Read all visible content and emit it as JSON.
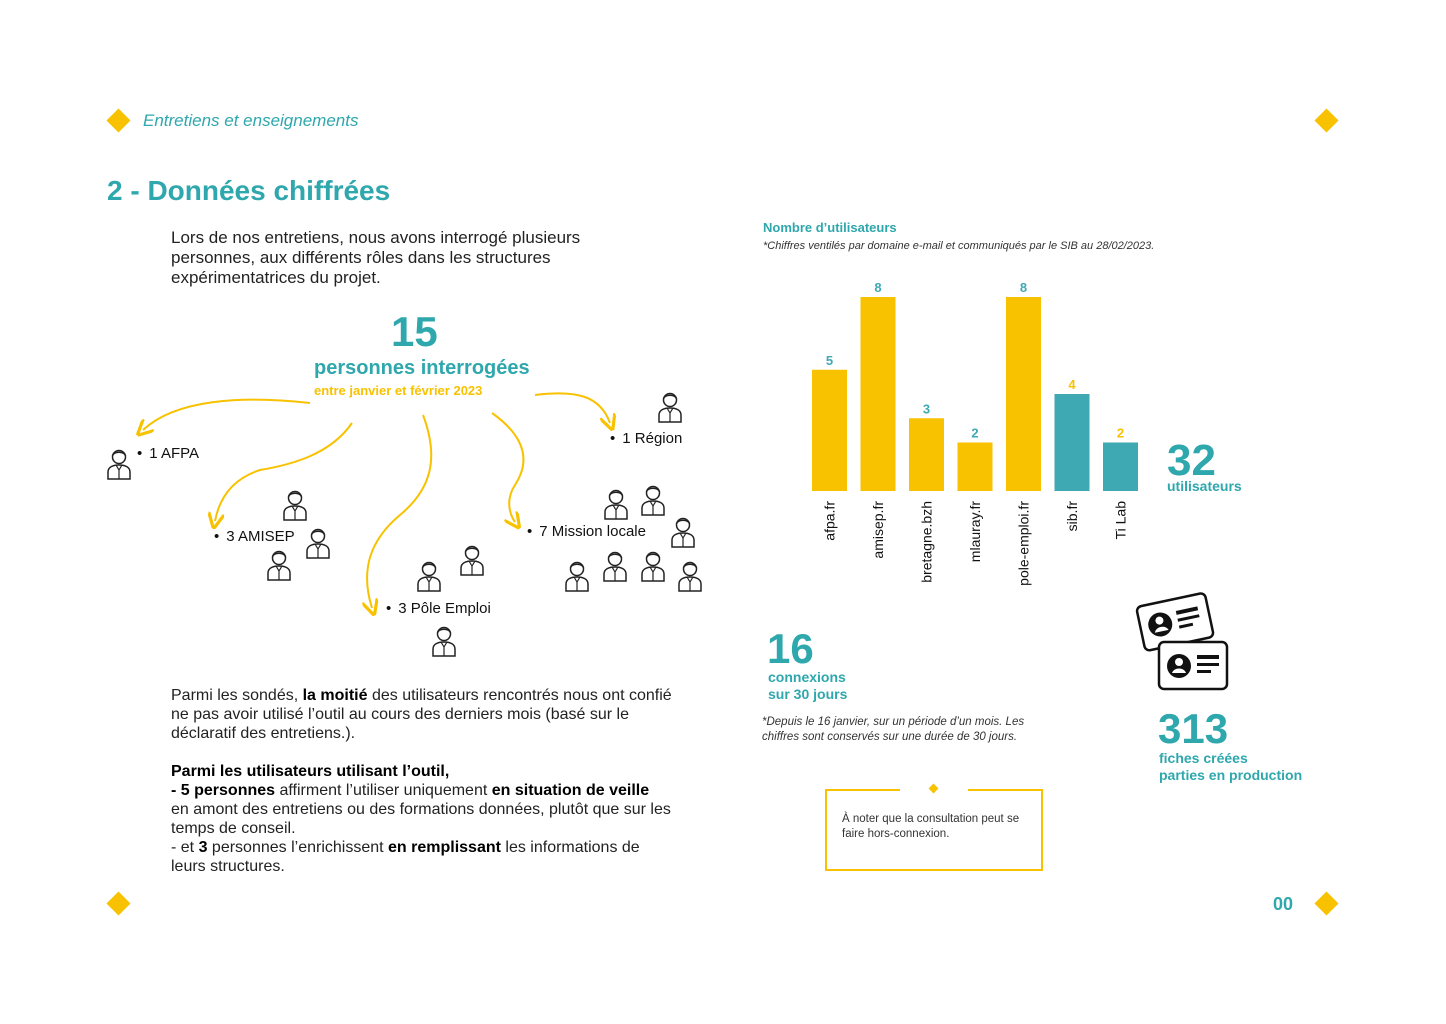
{
  "header": {
    "section": "Entretiens et enseignements"
  },
  "page": {
    "title": "2 - Données chiffrées",
    "intro": "Lors de nos entretiens, nous avons interrogé plusieurs personnes, aux différents rôles dans les structures expérimentatrices du projet.",
    "page_number": "00"
  },
  "interviews": {
    "total": "15",
    "label": "personnes interrogées",
    "period": "entre janvier et février 2023",
    "groups": [
      {
        "label": "1 AFPA",
        "count": 1
      },
      {
        "label": "1 Région",
        "count": 1
      },
      {
        "label": "3 AMISEP",
        "count": 3
      },
      {
        "label": "3 Pôle Emploi",
        "count": 3
      },
      {
        "label": "7 Mission locale",
        "count": 7
      }
    ]
  },
  "findings": {
    "p1_a": "Parmi les sondés, ",
    "p1_b": "la moitié",
    "p1_c": " des utilisateurs rencontrés nous ont confié ne pas avoir utilisé l’outil au cours des derniers mois (basé sur le déclaratif des entretiens.).",
    "p2_title": "Parmi les utilisateurs utilisant l’outil,",
    "p2_a": "- 5 personnes",
    "p2_b": " affirment l’utiliser uniquement ",
    "p2_c": "en situation de veille",
    "p2_d": " en amont des entretiens ou des formations données, plutôt que sur les temps de conseil.",
    "p3_a": "- et ",
    "p3_b": "3",
    "p3_c": " personnes l’enrichissent ",
    "p3_d": "en remplissant",
    "p3_e": " les informations de leurs structures."
  },
  "chart_data": {
    "type": "bar",
    "title": "Nombre d’utilisateurs",
    "subtitle": "*Chiffres ventilés par domaine e-mail et communiqués par le SIB au 28/02/2023.",
    "categories": [
      "afpa.fr",
      "amisep.fr",
      "bretagne.bzh",
      "mlauray.fr",
      "pole-emploi.fr",
      "sib.fr",
      "Ti Lab"
    ],
    "values": [
      5,
      8,
      3,
      2,
      8,
      4,
      2
    ],
    "bar_colors": [
      "#f8c200",
      "#f8c200",
      "#f8c200",
      "#f8c200",
      "#f8c200",
      "#3ea9b3",
      "#3ea9b3"
    ],
    "label_colors": [
      "#3ea9b3",
      "#3ea9b3",
      "#3ea9b3",
      "#3ea9b3",
      "#3ea9b3",
      "#f8c200",
      "#f8c200"
    ],
    "ylim": [
      0,
      8
    ],
    "grid": false
  },
  "stats": {
    "users_value": "32",
    "users_label": "utilisateurs",
    "connections_value": "16",
    "connections_label1": "connexions",
    "connections_label2": "sur 30 jours",
    "connections_note": "*Depuis le 16 janvier, sur un période d’un mois. Les chiffres sont conservés sur une durée de 30 jours.",
    "sheets_value": "313",
    "sheets_label1": "fiches créées",
    "sheets_label2": "parties en production"
  },
  "note": {
    "text": "À noter que la consultation peut se faire hors-connexion."
  },
  "colors": {
    "accent_teal": "#2ea7ad",
    "accent_yellow": "#f8c200"
  },
  "icons": [
    "person-icon",
    "id-card-icon",
    "diamond-icon"
  ]
}
